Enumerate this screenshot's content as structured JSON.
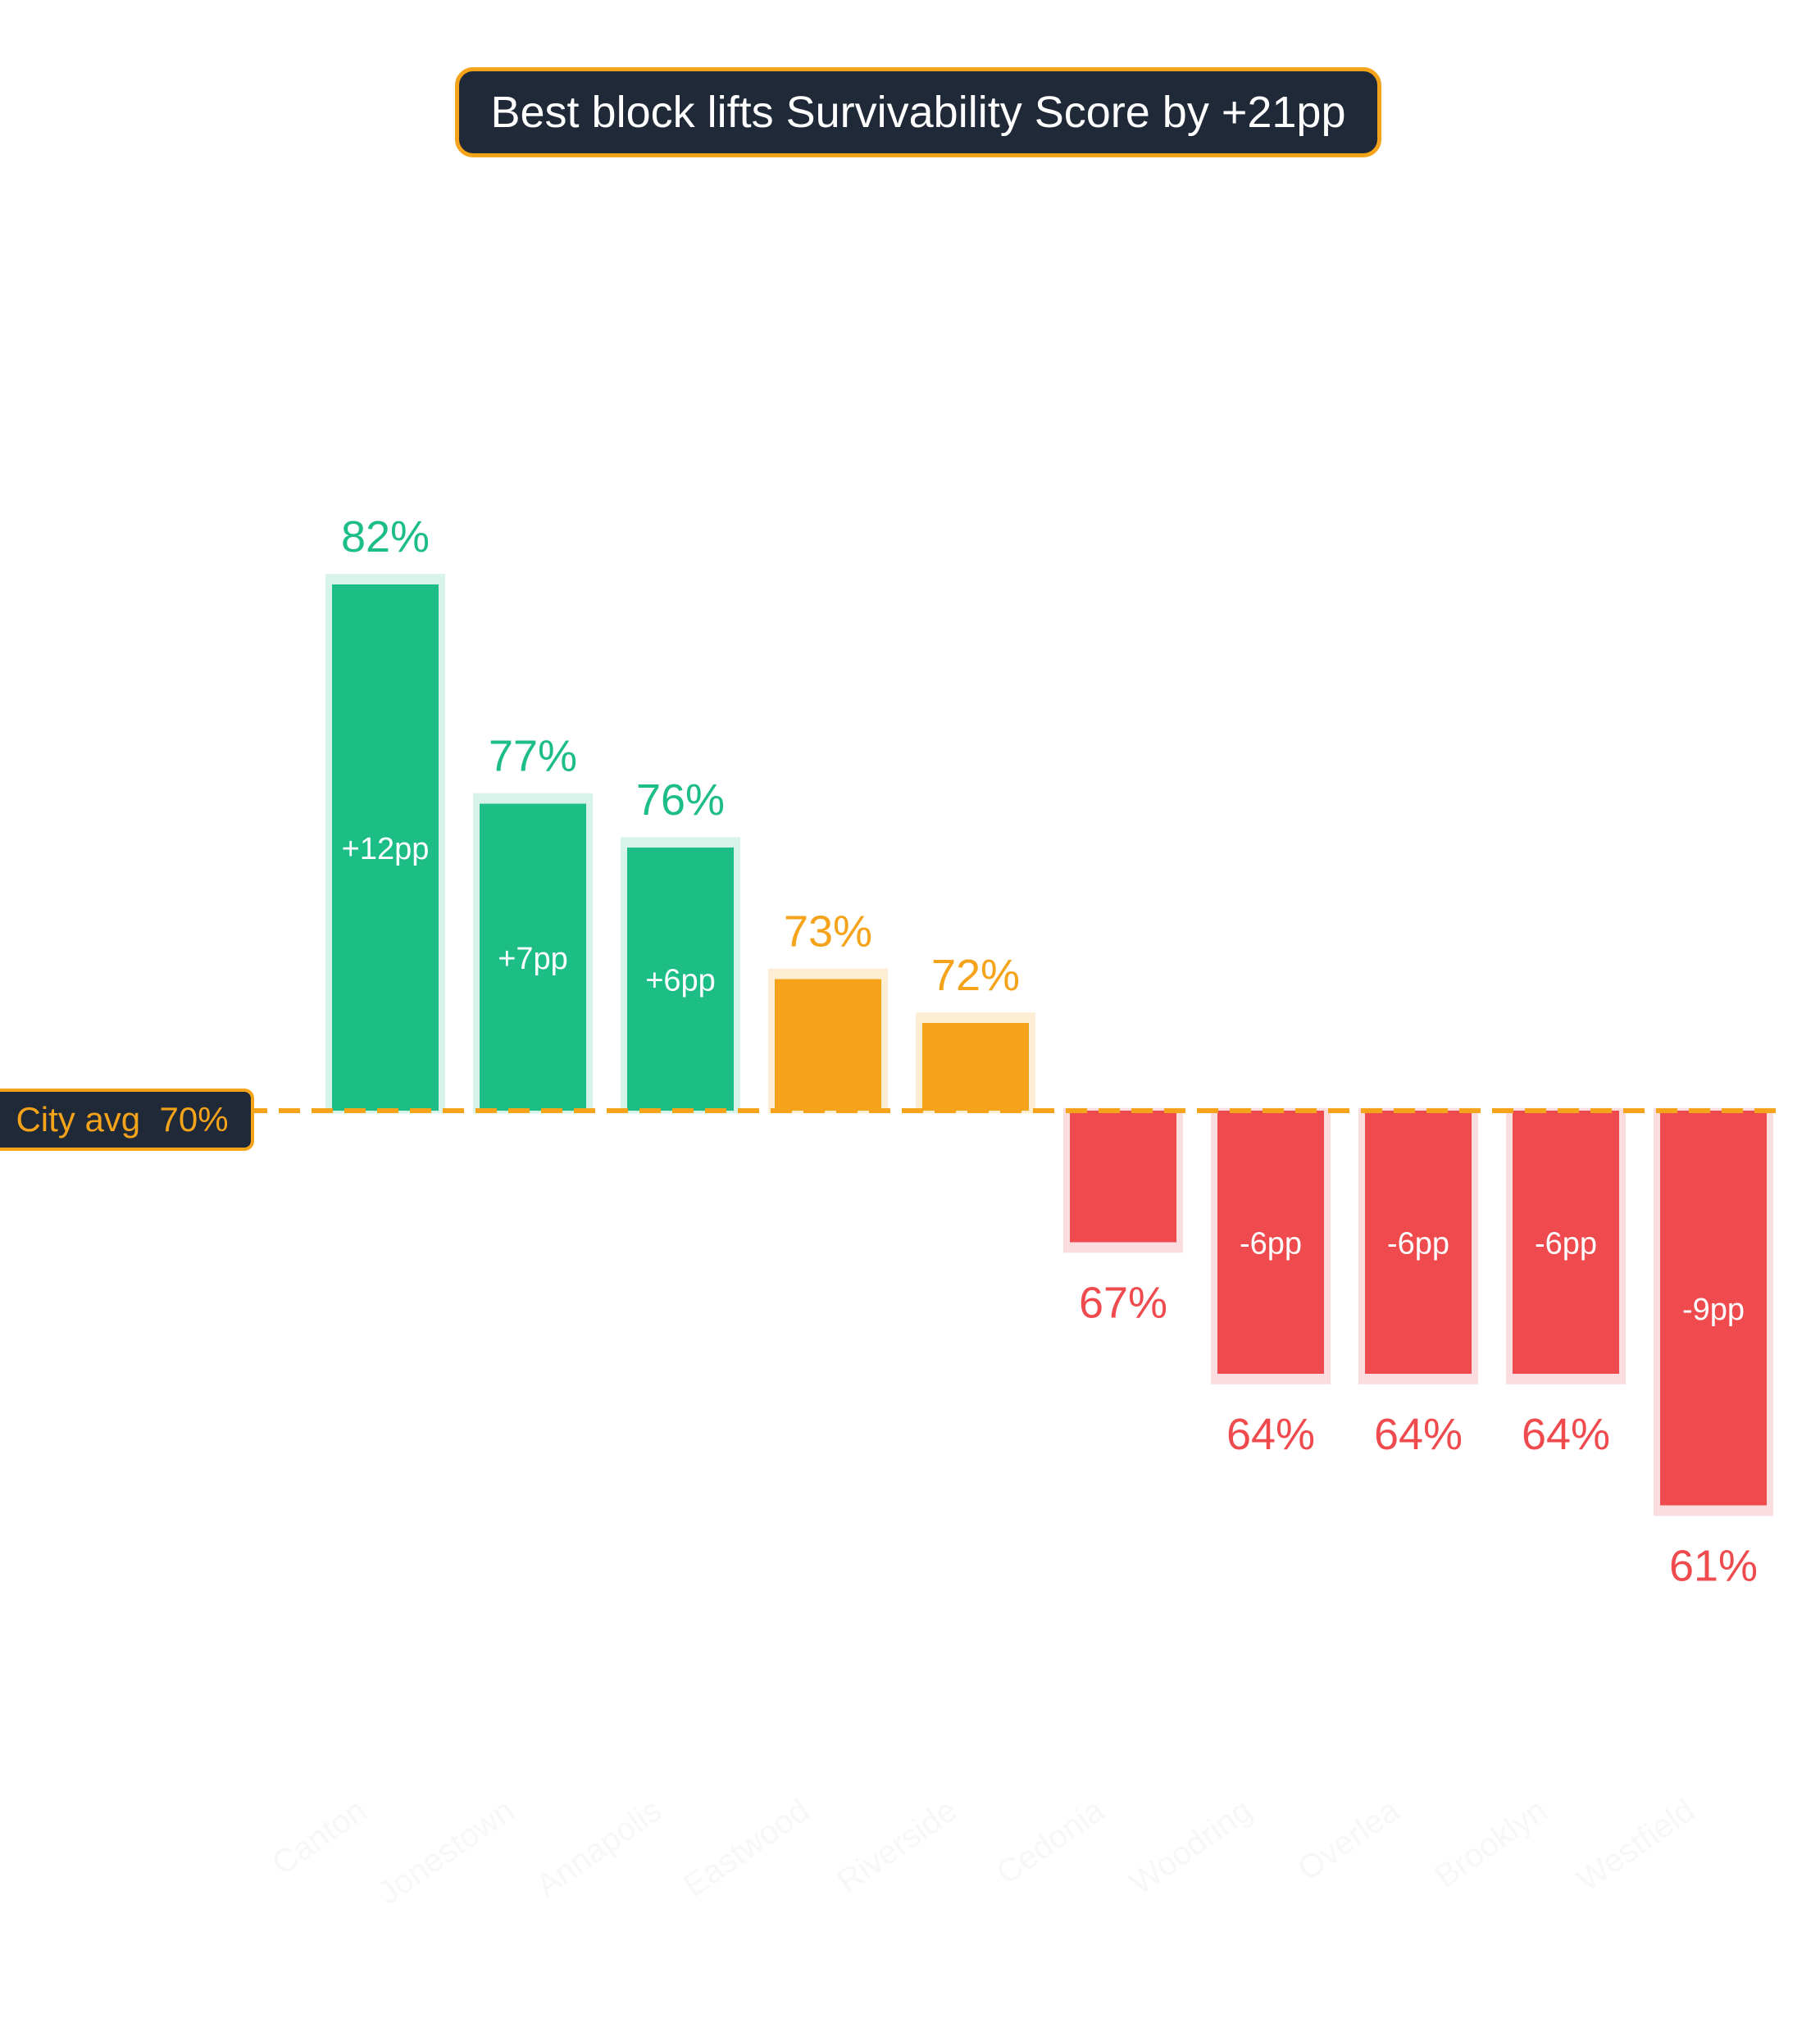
{
  "chart_data": {
    "type": "bar",
    "title": "Best block lifts Survivability Score by +21pp",
    "xlabel": "",
    "ylabel": "",
    "categories": [
      "Canton",
      "Jonestown",
      "Annapolis",
      "Eastwood",
      "Riverside",
      "Cedonia",
      "Woodring",
      "Overlea",
      "Brooklyn",
      "Westfield"
    ],
    "values": [
      82,
      77,
      76,
      73,
      72,
      67,
      64,
      64,
      64,
      61
    ],
    "value_labels": [
      "82%",
      "77%",
      "76%",
      "73%",
      "72%",
      "67%",
      "64%",
      "64%",
      "64%",
      "61%"
    ],
    "delta_labels": [
      "+12pp",
      "+7pp",
      "+6pp",
      "",
      "",
      "",
      "-6pp",
      "-6pp",
      "-6pp",
      "-9pp"
    ],
    "reference_line": {
      "label": "City avg",
      "value": 70,
      "value_label": "70%"
    },
    "grid": false,
    "legend": "none",
    "colors": {
      "above": "#1dbd86",
      "near": "#f4a31a",
      "below": "#ef4b4e",
      "reference": "#f4a31a",
      "title_bg": "#1f2937"
    }
  }
}
